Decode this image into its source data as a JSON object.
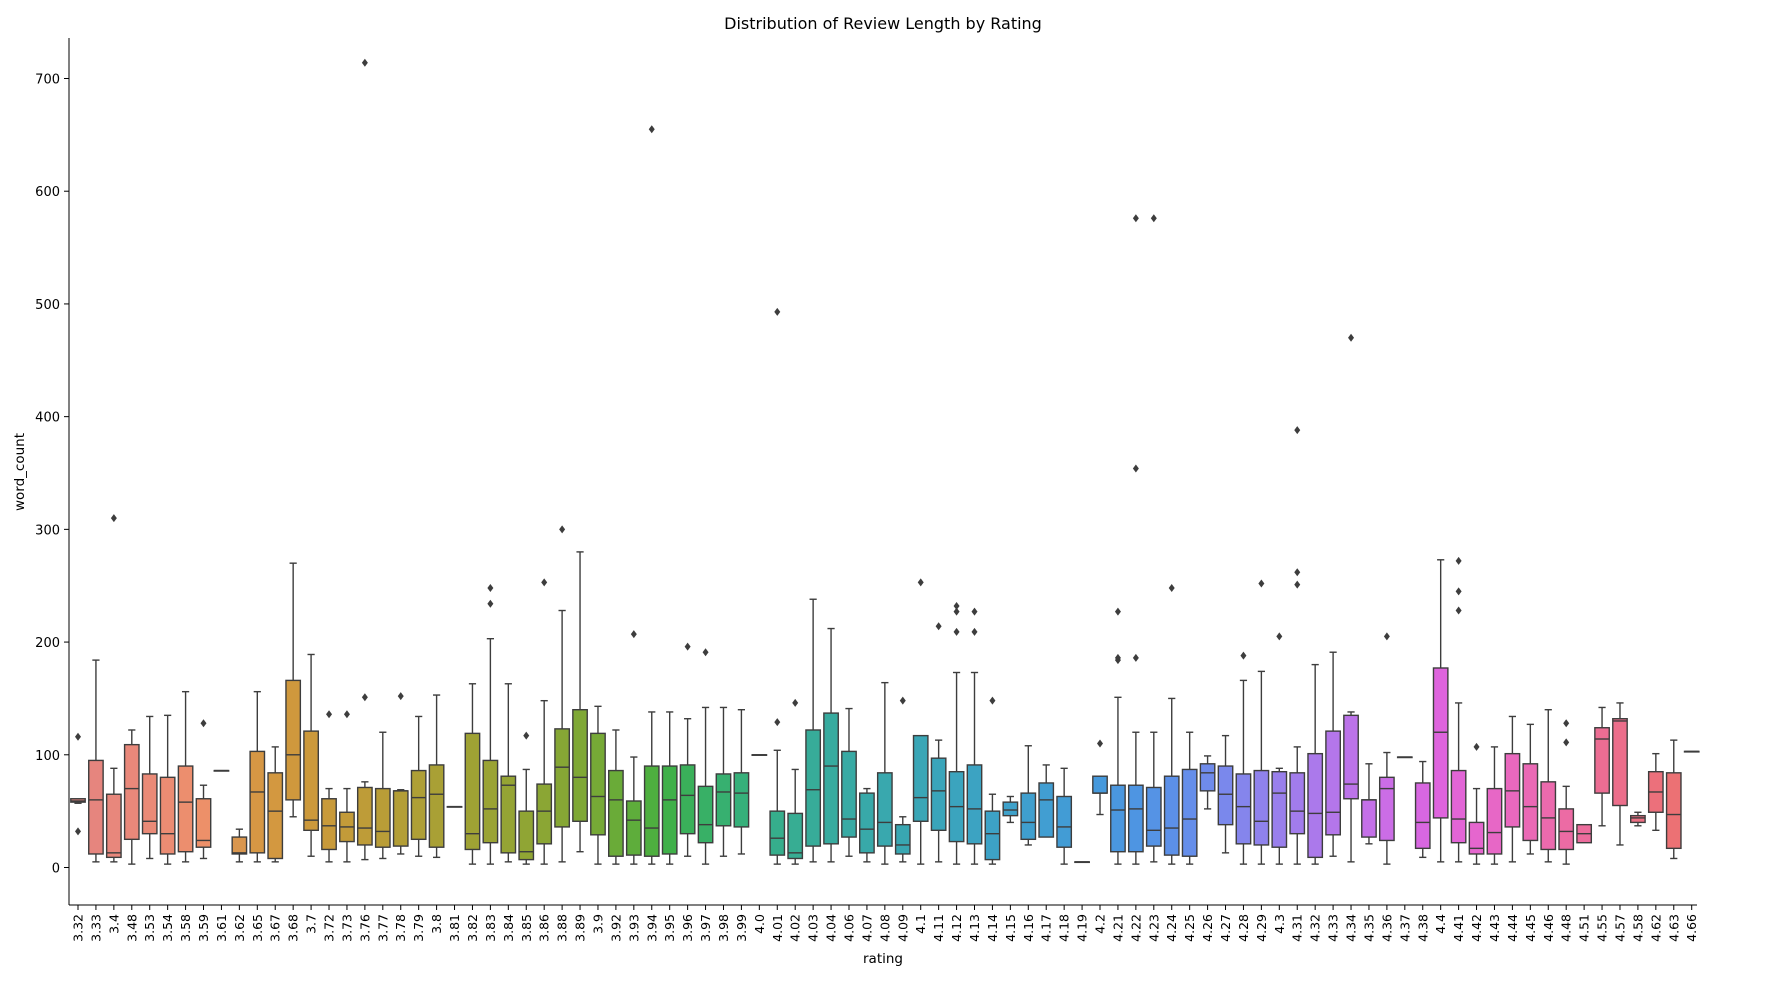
{
  "chart_data": {
    "type": "box",
    "title": "Distribution of Review Length by Rating",
    "xlabel": "rating",
    "ylabel": "word_count",
    "ylim": [
      -35,
      750
    ],
    "yticks": [
      0,
      100,
      200,
      300,
      400,
      500,
      600,
      700
    ],
    "grid": false,
    "legend": "none",
    "categories": [
      {
        "label": "3.32",
        "color": "#e0827d",
        "box": [
          57,
          58,
          59,
          61,
          61
        ],
        "outliers": [
          116,
          32
        ]
      },
      {
        "label": "3.33",
        "color": "#e6857e",
        "box": [
          5,
          12,
          60,
          95,
          184
        ],
        "outliers": []
      },
      {
        "label": "3.4",
        "color": "#e8877c",
        "box": [
          5,
          9,
          13,
          65,
          88
        ],
        "outliers": [
          310
        ]
      },
      {
        "label": "3.48",
        "color": "#e9887a",
        "box": [
          3,
          25,
          70,
          109,
          122
        ],
        "outliers": []
      },
      {
        "label": "3.53",
        "color": "#ea8a77",
        "box": [
          8,
          30,
          41,
          83,
          134
        ],
        "outliers": []
      },
      {
        "label": "3.54",
        "color": "#eb8c73",
        "box": [
          3,
          12,
          30,
          80,
          135
        ],
        "outliers": []
      },
      {
        "label": "3.58",
        "color": "#ec8e6e",
        "box": [
          5,
          14,
          58,
          90,
          156
        ],
        "outliers": []
      },
      {
        "label": "3.59",
        "color": "#ed9069",
        "box": [
          8,
          18,
          24,
          61,
          73
        ],
        "outliers": [
          128
        ]
      },
      {
        "label": "3.61",
        "color": "#e99463",
        "box": [
          86,
          86,
          86,
          86,
          86
        ],
        "outliers": []
      },
      {
        "label": "3.62",
        "color": "#d9964e",
        "box": [
          5,
          12,
          13,
          27,
          34
        ],
        "outliers": []
      },
      {
        "label": "3.65",
        "color": "#d69744",
        "box": [
          5,
          13,
          67,
          103,
          156
        ],
        "outliers": []
      },
      {
        "label": "3.67",
        "color": "#d39840",
        "box": [
          5,
          8,
          50,
          84,
          107
        ],
        "outliers": []
      },
      {
        "label": "3.68",
        "color": "#cf983d",
        "box": [
          45,
          60,
          100,
          166,
          270
        ],
        "outliers": []
      },
      {
        "label": "3.7",
        "color": "#cc993b",
        "box": [
          10,
          33,
          42,
          121,
          189
        ],
        "outliers": []
      },
      {
        "label": "3.72",
        "color": "#c89a3a",
        "box": [
          5,
          16,
          37,
          61,
          70
        ],
        "outliers": [
          136
        ]
      },
      {
        "label": "3.73",
        "color": "#c39b39",
        "box": [
          5,
          23,
          36,
          49,
          70
        ],
        "outliers": [
          136
        ]
      },
      {
        "label": "3.76",
        "color": "#be9c38",
        "box": [
          7,
          20,
          35,
          71,
          76
        ],
        "outliers": [
          151,
          714
        ]
      },
      {
        "label": "3.77",
        "color": "#b99d37",
        "box": [
          8,
          18,
          32,
          70,
          120
        ],
        "outliers": []
      },
      {
        "label": "3.78",
        "color": "#b39e36",
        "box": [
          12,
          19,
          68,
          68,
          69
        ],
        "outliers": [
          152
        ]
      },
      {
        "label": "3.79",
        "color": "#ae9f36",
        "box": [
          10,
          25,
          62,
          86,
          134
        ],
        "outliers": []
      },
      {
        "label": "3.8",
        "color": "#a9a035",
        "box": [
          9,
          18,
          65,
          91,
          153
        ],
        "outliers": []
      },
      {
        "label": "3.81",
        "color": "#a4a135",
        "box": [
          54,
          54,
          54,
          54,
          54
        ],
        "outliers": []
      },
      {
        "label": "3.82",
        "color": "#9fa234",
        "box": [
          3,
          16,
          30,
          119,
          163
        ],
        "outliers": []
      },
      {
        "label": "3.83",
        "color": "#9aa334",
        "box": [
          3,
          22,
          52,
          95,
          203
        ],
        "outliers": [
          234,
          248
        ]
      },
      {
        "label": "3.84",
        "color": "#95a434",
        "box": [
          5,
          13,
          73,
          81,
          163
        ],
        "outliers": []
      },
      {
        "label": "3.85",
        "color": "#90a534",
        "box": [
          3,
          7,
          14,
          50,
          87
        ],
        "outliers": [
          117
        ]
      },
      {
        "label": "3.86",
        "color": "#8ba634",
        "box": [
          3,
          21,
          50,
          74,
          148
        ],
        "outliers": [
          253
        ]
      },
      {
        "label": "3.88",
        "color": "#86a735",
        "box": [
          5,
          36,
          89,
          123,
          228
        ],
        "outliers": [
          300
        ]
      },
      {
        "label": "3.89",
        "color": "#7fa835",
        "box": [
          14,
          41,
          80,
          140,
          280
        ],
        "outliers": []
      },
      {
        "label": "3.9",
        "color": "#76a936",
        "box": [
          3,
          29,
          63,
          119,
          143
        ],
        "outliers": []
      },
      {
        "label": "3.92",
        "color": "#6aab38",
        "box": [
          3,
          10,
          60,
          86,
          122
        ],
        "outliers": []
      },
      {
        "label": "3.93",
        "color": "#5ead3b",
        "box": [
          3,
          11,
          42,
          59,
          98
        ],
        "outliers": [
          207
        ]
      },
      {
        "label": "3.94",
        "color": "#4eaf3f",
        "box": [
          3,
          10,
          35,
          90,
          138
        ],
        "outliers": [
          655
        ]
      },
      {
        "label": "3.95",
        "color": "#3fb049",
        "box": [
          3,
          12,
          60,
          90,
          138
        ],
        "outliers": []
      },
      {
        "label": "3.96",
        "color": "#3ab05a",
        "box": [
          10,
          30,
          64,
          91,
          132
        ],
        "outliers": [
          196
        ]
      },
      {
        "label": "3.97",
        "color": "#38b066",
        "box": [
          3,
          22,
          38,
          72,
          142
        ],
        "outliers": [
          191
        ]
      },
      {
        "label": "3.98",
        "color": "#37b070",
        "box": [
          10,
          37,
          67,
          83,
          142
        ],
        "outliers": []
      },
      {
        "label": "3.99",
        "color": "#36b07a",
        "box": [
          12,
          36,
          66,
          84,
          140
        ],
        "outliers": []
      },
      {
        "label": "4.0",
        "color": "#36af83",
        "box": [
          100,
          100,
          100,
          100,
          100
        ],
        "outliers": []
      },
      {
        "label": "4.01",
        "color": "#36ae8c",
        "box": [
          3,
          11,
          26,
          50,
          104
        ],
        "outliers": [
          129,
          493
        ]
      },
      {
        "label": "4.02",
        "color": "#37ad93",
        "box": [
          3,
          8,
          13,
          48,
          87
        ],
        "outliers": [
          146
        ]
      },
      {
        "label": "4.03",
        "color": "#37ac99",
        "box": [
          5,
          19,
          69,
          122,
          238
        ],
        "outliers": []
      },
      {
        "label": "4.04",
        "color": "#37ab9f",
        "box": [
          5,
          21,
          90,
          137,
          212
        ],
        "outliers": []
      },
      {
        "label": "4.06",
        "color": "#38aaa4",
        "box": [
          10,
          27,
          43,
          103,
          141
        ],
        "outliers": []
      },
      {
        "label": "4.07",
        "color": "#38a9a9",
        "box": [
          5,
          13,
          34,
          66,
          70
        ],
        "outliers": []
      },
      {
        "label": "4.08",
        "color": "#39a8ae",
        "box": [
          3,
          19,
          40,
          84,
          164
        ],
        "outliers": []
      },
      {
        "label": "4.09",
        "color": "#39a7b2",
        "box": [
          5,
          12,
          20,
          38,
          45
        ],
        "outliers": [
          148
        ]
      },
      {
        "label": "4.1",
        "color": "#3aa6b6",
        "box": [
          3,
          41,
          62,
          117,
          117
        ],
        "outliers": [
          253
        ]
      },
      {
        "label": "4.11",
        "color": "#3aa5ba",
        "box": [
          5,
          33,
          68,
          97,
          113
        ],
        "outliers": [
          214
        ]
      },
      {
        "label": "4.12",
        "color": "#3ba4be",
        "box": [
          3,
          23,
          54,
          85,
          173
        ],
        "outliers": [
          209,
          227,
          232
        ]
      },
      {
        "label": "4.13",
        "color": "#3ca3c2",
        "box": [
          3,
          21,
          52,
          91,
          173
        ],
        "outliers": [
          209,
          227
        ]
      },
      {
        "label": "4.14",
        "color": "#3da2c6",
        "box": [
          3,
          7,
          30,
          50,
          65
        ],
        "outliers": [
          148
        ]
      },
      {
        "label": "4.15",
        "color": "#3ea1ca",
        "box": [
          40,
          46,
          51,
          58,
          63
        ],
        "outliers": []
      },
      {
        "label": "4.16",
        "color": "#3f9fce",
        "box": [
          20,
          25,
          40,
          66,
          108
        ],
        "outliers": []
      },
      {
        "label": "4.17",
        "color": "#419ed2",
        "box": [
          27,
          27,
          60,
          75,
          91
        ],
        "outliers": []
      },
      {
        "label": "4.18",
        "color": "#429cd5",
        "box": [
          3,
          18,
          36,
          63,
          88
        ],
        "outliers": []
      },
      {
        "label": "4.19",
        "color": "#449bd9",
        "box": [
          5,
          5,
          5,
          5,
          5
        ],
        "outliers": []
      },
      {
        "label": "4.2",
        "color": "#4699dc",
        "box": [
          47,
          66,
          66,
          81,
          81
        ],
        "outliers": [
          110
        ]
      },
      {
        "label": "4.21",
        "color": "#4a97df",
        "box": [
          3,
          14,
          51,
          73,
          151
        ],
        "outliers": [
          184,
          186,
          227
        ]
      },
      {
        "label": "4.22",
        "color": "#4e95e2",
        "box": [
          3,
          14,
          52,
          73,
          120
        ],
        "outliers": [
          186,
          354,
          576
        ]
      },
      {
        "label": "4.23",
        "color": "#5593e5",
        "box": [
          5,
          19,
          33,
          71,
          120
        ],
        "outliers": [
          576
        ]
      },
      {
        "label": "4.24",
        "color": "#5c90e8",
        "box": [
          3,
          11,
          35,
          81,
          150
        ],
        "outliers": [
          248
        ]
      },
      {
        "label": "4.25",
        "color": "#658eea",
        "box": [
          3,
          10,
          43,
          87,
          120
        ],
        "outliers": []
      },
      {
        "label": "4.26",
        "color": "#6f8beb",
        "box": [
          52,
          68,
          84,
          92,
          99
        ],
        "outliers": []
      },
      {
        "label": "4.27",
        "color": "#7a88ec",
        "box": [
          13,
          38,
          65,
          90,
          117
        ],
        "outliers": []
      },
      {
        "label": "4.28",
        "color": "#8585ec",
        "box": [
          3,
          21,
          54,
          83,
          166
        ],
        "outliers": [
          188
        ]
      },
      {
        "label": "4.29",
        "color": "#8f82ec",
        "box": [
          3,
          20,
          41,
          86,
          174
        ],
        "outliers": [
          252
        ]
      },
      {
        "label": "4.3",
        "color": "#997fec",
        "box": [
          3,
          18,
          66,
          85,
          88
        ],
        "outliers": [
          205
        ]
      },
      {
        "label": "4.31",
        "color": "#a27cec",
        "box": [
          3,
          30,
          50,
          84,
          107
        ],
        "outliers": [
          251,
          262,
          388
        ]
      },
      {
        "label": "4.32",
        "color": "#ab79eb",
        "box": [
          3,
          9,
          48,
          101,
          180
        ],
        "outliers": []
      },
      {
        "label": "4.33",
        "color": "#b476ea",
        "box": [
          10,
          29,
          49,
          121,
          191
        ],
        "outliers": []
      },
      {
        "label": "4.34",
        "color": "#bc73e9",
        "box": [
          5,
          61,
          74,
          135,
          138
        ],
        "outliers": [
          470
        ]
      },
      {
        "label": "4.35",
        "color": "#c470e8",
        "box": [
          21,
          27,
          60,
          60,
          92
        ],
        "outliers": []
      },
      {
        "label": "4.36",
        "color": "#cb6de6",
        "box": [
          3,
          24,
          70,
          80,
          102
        ],
        "outliers": [
          205
        ]
      },
      {
        "label": "4.37",
        "color": "#d26ae4",
        "box": [
          98,
          98,
          98,
          98,
          98
        ],
        "outliers": []
      },
      {
        "label": "4.38",
        "color": "#d867e1",
        "box": [
          9,
          17,
          40,
          75,
          94
        ],
        "outliers": []
      },
      {
        "label": "4.4",
        "color": "#de64dd",
        "box": [
          5,
          44,
          120,
          177,
          273
        ],
        "outliers": []
      },
      {
        "label": "4.41",
        "color": "#e265d6",
        "box": [
          5,
          22,
          43,
          86,
          146
        ],
        "outliers": [
          228,
          245,
          272
        ]
      },
      {
        "label": "4.42",
        "color": "#e566ce",
        "box": [
          3,
          12,
          17,
          40,
          70
        ],
        "outliers": [
          107
        ]
      },
      {
        "label": "4.43",
        "color": "#e767c6",
        "box": [
          3,
          12,
          31,
          70,
          107
        ],
        "outliers": []
      },
      {
        "label": "4.44",
        "color": "#e968be",
        "box": [
          5,
          36,
          68,
          101,
          134
        ],
        "outliers": []
      },
      {
        "label": "4.45",
        "color": "#ea69b5",
        "box": [
          12,
          24,
          54,
          92,
          127
        ],
        "outliers": []
      },
      {
        "label": "4.46",
        "color": "#eb6aad",
        "box": [
          5,
          16,
          44,
          76,
          140
        ],
        "outliers": []
      },
      {
        "label": "4.48",
        "color": "#ec6ba4",
        "box": [
          3,
          16,
          32,
          52,
          72
        ],
        "outliers": [
          111,
          128
        ]
      },
      {
        "label": "4.51",
        "color": "#ec6c9c",
        "box": [
          22,
          22,
          30,
          38,
          38
        ],
        "outliers": []
      },
      {
        "label": "4.55",
        "color": "#ec6d93",
        "box": [
          37,
          66,
          114,
          124,
          142
        ],
        "outliers": []
      },
      {
        "label": "4.57",
        "color": "#ec6e8b",
        "box": [
          20,
          55,
          130,
          132,
          146
        ],
        "outliers": []
      },
      {
        "label": "4.58",
        "color": "#ec6f83",
        "box": [
          37,
          40,
          44,
          46,
          49
        ],
        "outliers": []
      },
      {
        "label": "4.62",
        "color": "#ec707b",
        "box": [
          33,
          49,
          67,
          85,
          101
        ],
        "outliers": []
      },
      {
        "label": "4.63",
        "color": "#ec7174",
        "box": [
          8,
          17,
          47,
          84,
          113
        ],
        "outliers": []
      },
      {
        "label": "4.66",
        "color": "#ec726e",
        "box": [
          103,
          103,
          103,
          103,
          103
        ],
        "outliers": []
      }
    ]
  }
}
